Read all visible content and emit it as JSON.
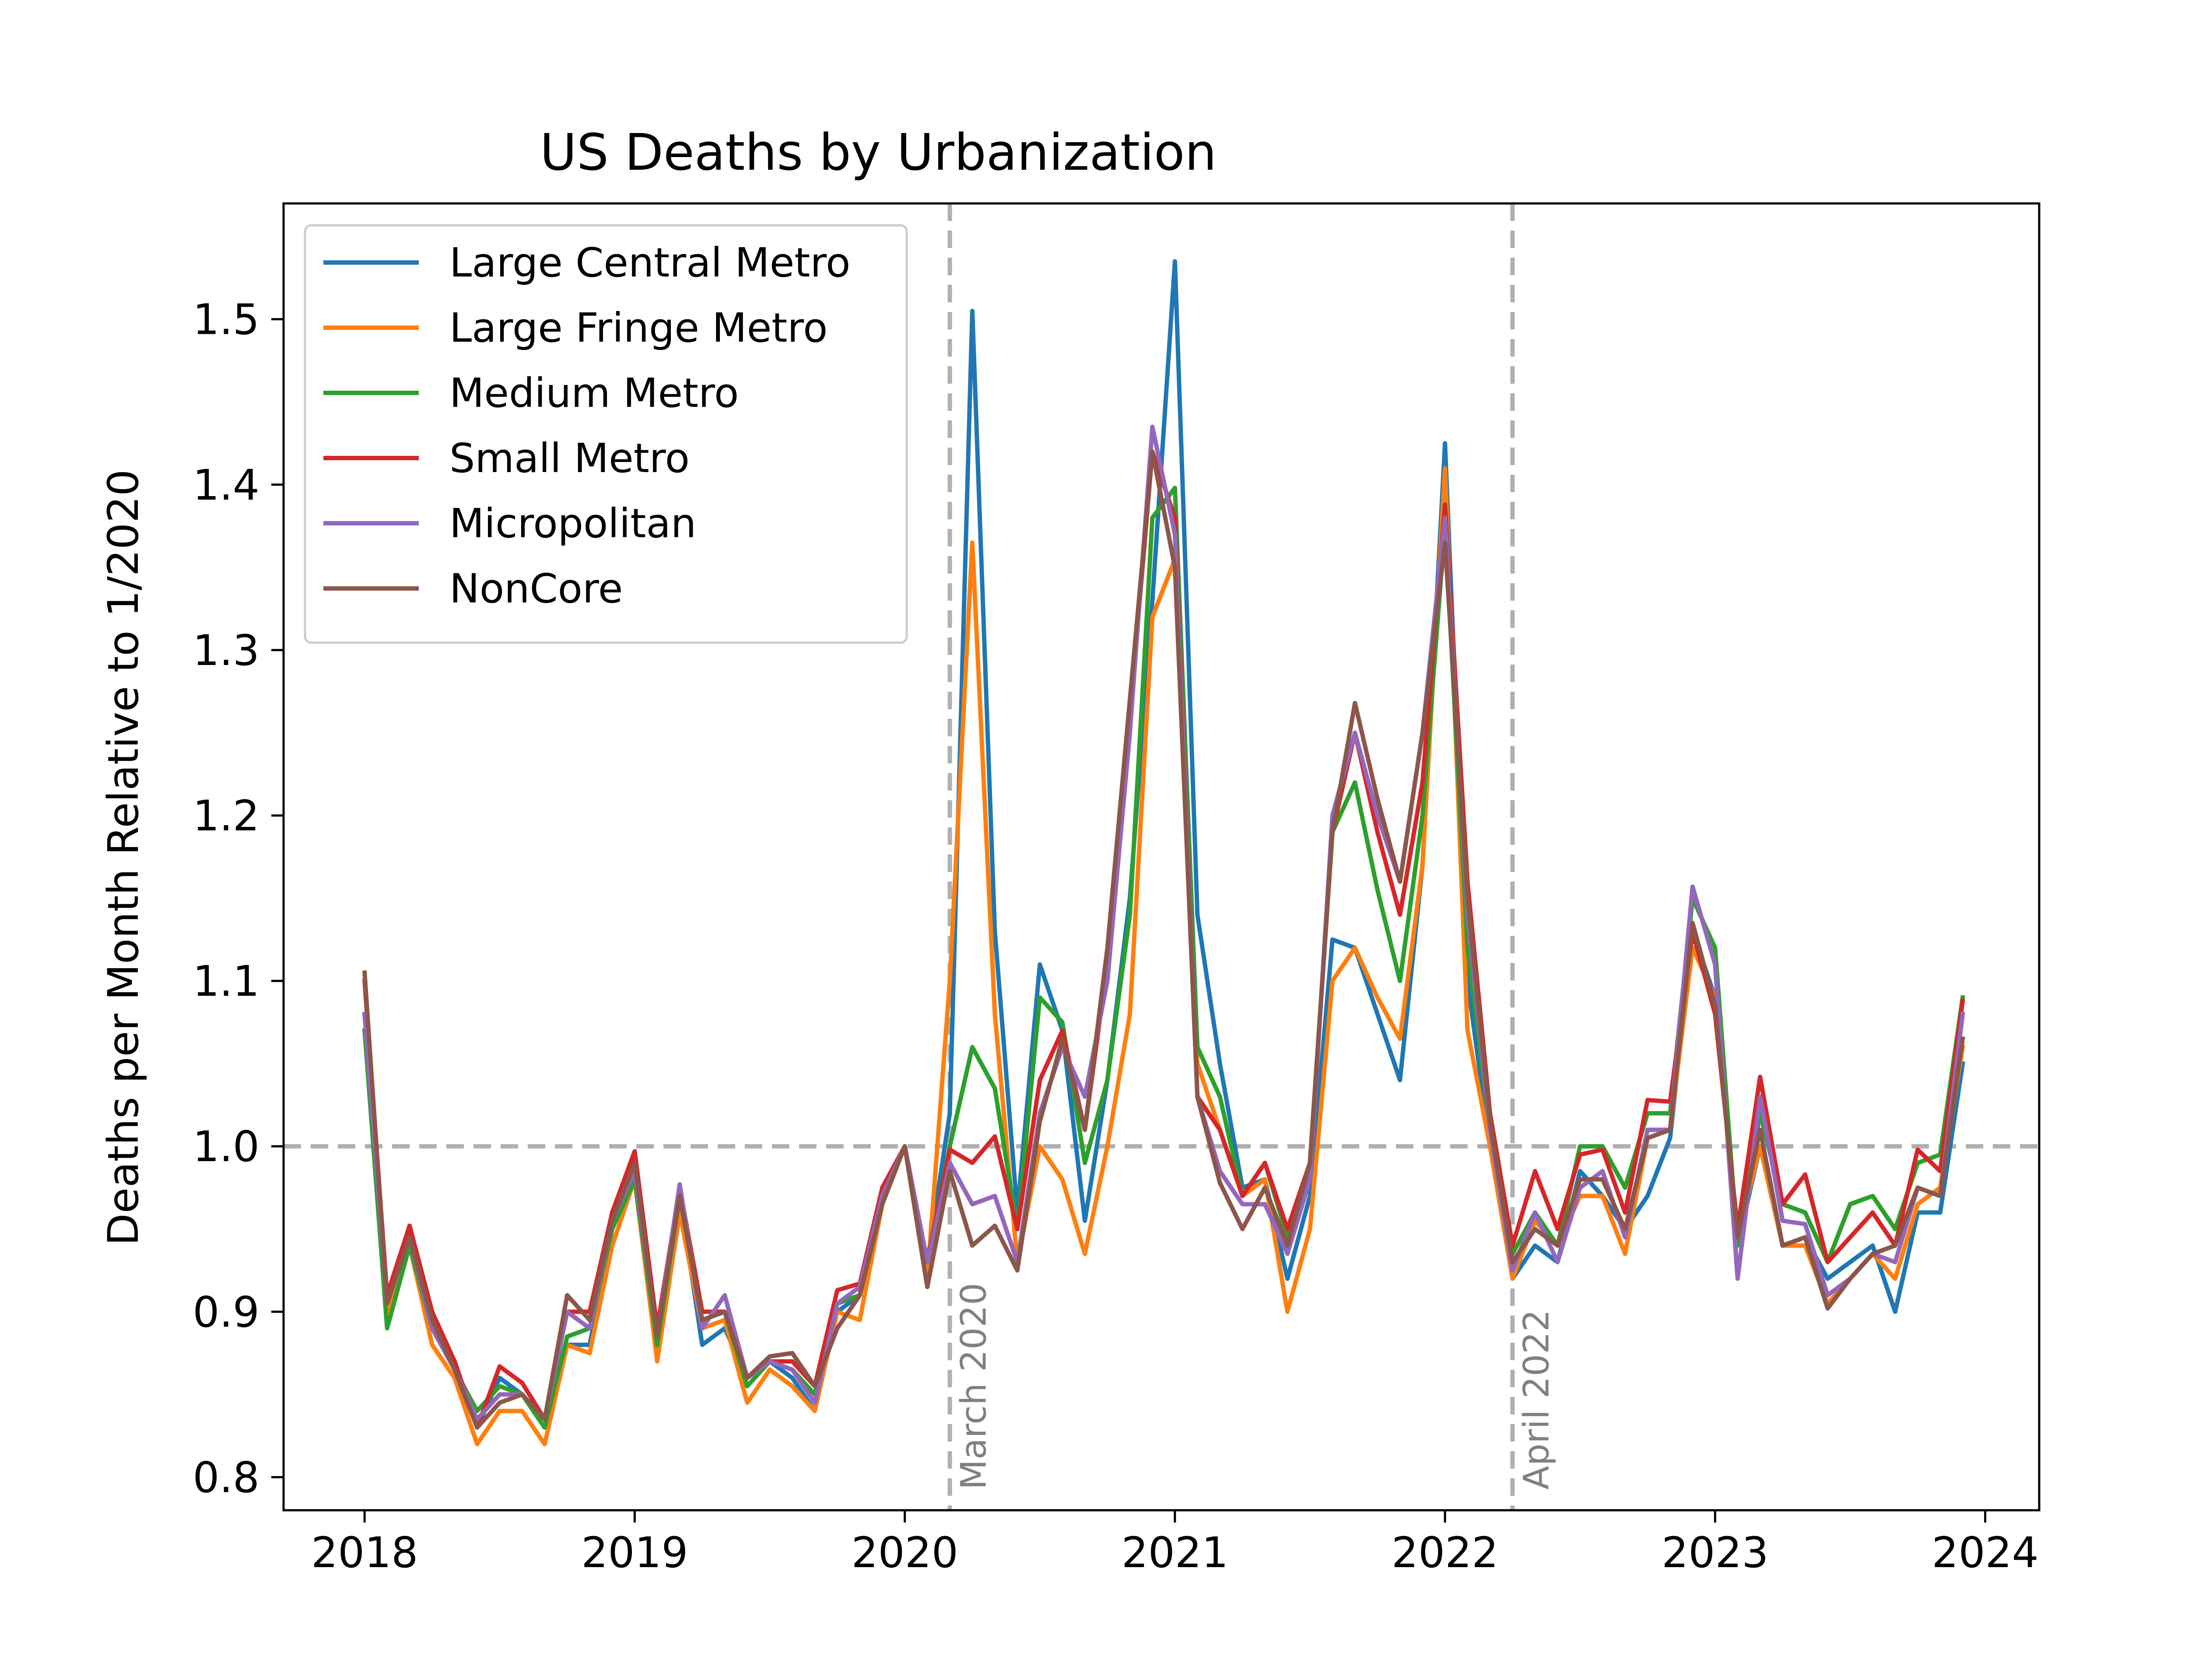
{
  "chart_data": {
    "type": "line",
    "title": "US Deaths by Urbanization",
    "xlabel": "",
    "ylabel": "Deaths per Month Relative to 1/2020",
    "xlim": [
      2017.7,
      2024.2
    ],
    "ylim": [
      0.78,
      1.57
    ],
    "x_ticks": [
      2018,
      2019,
      2020,
      2021,
      2022,
      2023,
      2024
    ],
    "x_tick_labels": [
      "2018",
      "2019",
      "2020",
      "2021",
      "2022",
      "2023",
      "2024"
    ],
    "y_ticks": [
      0.8,
      0.9,
      1.0,
      1.1,
      1.2,
      1.3,
      1.4,
      1.5
    ],
    "y_tick_labels": [
      "0.8",
      "0.9",
      "1.0",
      "1.1",
      "1.2",
      "1.3",
      "1.4",
      "1.5"
    ],
    "x_start": 2018.0,
    "x_step_months": 1,
    "reference_line": {
      "y": 1.0,
      "color": "#b0b0b0"
    },
    "vlines": [
      {
        "x": 2020.1667,
        "label": "March 2020",
        "color": "#b0b0b0"
      },
      {
        "x": 2022.25,
        "label": "April 2022",
        "color": "#b0b0b0"
      }
    ],
    "legend_position": "upper left",
    "series": [
      {
        "name": "Large Central Metro",
        "color": "#1f77b4",
        "values": [
          1.08,
          0.9,
          0.95,
          0.89,
          0.87,
          0.83,
          0.86,
          0.85,
          0.83,
          0.88,
          0.88,
          0.95,
          0.99,
          0.88,
          0.97,
          0.88,
          0.89,
          0.86,
          0.87,
          0.86,
          0.84,
          0.9,
          0.91,
          0.97,
          1.0,
          0.93,
          1.02,
          1.505,
          1.13,
          0.96,
          1.11,
          1.07,
          0.955,
          1.04,
          1.15,
          1.33,
          1.535,
          1.14,
          1.05,
          0.975,
          0.98,
          0.92,
          0.97,
          1.125,
          1.12,
          1.08,
          1.04,
          1.17,
          1.425,
          1.1,
          1.0,
          0.92,
          0.94,
          0.93,
          0.985,
          0.97,
          0.95,
          0.97,
          1.005,
          1.13,
          1.09,
          0.94,
          1.0,
          0.94,
          0.945,
          0.92,
          0.93,
          0.94,
          0.9,
          0.96,
          0.96,
          1.05
        ]
      },
      {
        "name": "Large Fringe Metro",
        "color": "#ff7f0e",
        "values": [
          1.07,
          0.9,
          0.94,
          0.88,
          0.86,
          0.82,
          0.84,
          0.84,
          0.82,
          0.88,
          0.875,
          0.94,
          0.98,
          0.87,
          0.96,
          0.89,
          0.895,
          0.845,
          0.865,
          0.855,
          0.84,
          0.9,
          0.895,
          0.965,
          1.0,
          0.92,
          1.1,
          1.365,
          1.08,
          0.93,
          1.0,
          0.98,
          0.935,
          1.0,
          1.08,
          1.32,
          1.355,
          1.05,
          1.01,
          0.97,
          0.98,
          0.9,
          0.95,
          1.1,
          1.12,
          1.09,
          1.065,
          1.17,
          1.41,
          1.07,
          1.0,
          0.92,
          0.955,
          0.94,
          0.97,
          0.97,
          0.935,
          1.005,
          1.01,
          1.12,
          1.09,
          0.945,
          1.0,
          0.94,
          0.94,
          0.905,
          0.92,
          0.935,
          0.92,
          0.965,
          0.975,
          1.06
        ]
      },
      {
        "name": "Medium Metro",
        "color": "#2ca02c",
        "values": [
          1.07,
          0.89,
          0.94,
          0.89,
          0.865,
          0.84,
          0.855,
          0.85,
          0.83,
          0.885,
          0.89,
          0.95,
          0.98,
          0.88,
          0.97,
          0.895,
          0.9,
          0.855,
          0.87,
          0.865,
          0.85,
          0.905,
          0.91,
          0.975,
          1.0,
          0.93,
          1.0,
          1.06,
          1.035,
          0.95,
          1.09,
          1.075,
          0.99,
          1.04,
          1.14,
          1.38,
          1.398,
          1.06,
          1.03,
          0.97,
          0.99,
          0.945,
          0.99,
          1.19,
          1.22,
          1.155,
          1.1,
          1.2,
          1.375,
          1.12,
          1.01,
          0.935,
          0.96,
          0.94,
          1.0,
          1.0,
          0.975,
          1.02,
          1.02,
          1.15,
          1.12,
          0.94,
          1.02,
          0.965,
          0.96,
          0.93,
          0.965,
          0.97,
          0.95,
          0.99,
          0.995,
          1.09
        ]
      },
      {
        "name": "Small Metro",
        "color": "#d62728",
        "values": [
          1.1,
          0.91,
          0.952,
          0.9,
          0.87,
          0.83,
          0.867,
          0.857,
          0.835,
          0.9,
          0.9,
          0.96,
          0.997,
          0.89,
          0.975,
          0.9,
          0.9,
          0.86,
          0.87,
          0.87,
          0.855,
          0.913,
          0.917,
          0.975,
          1.0,
          0.93,
          0.998,
          0.99,
          1.006,
          0.95,
          1.04,
          1.07,
          1.01,
          1.11,
          1.26,
          1.42,
          1.38,
          1.03,
          1.01,
          0.97,
          0.99,
          0.95,
          0.99,
          1.19,
          1.25,
          1.19,
          1.14,
          1.22,
          1.388,
          1.16,
          1.02,
          0.94,
          0.985,
          0.95,
          0.995,
          0.998,
          0.96,
          1.028,
          1.027,
          1.13,
          1.08,
          0.95,
          1.042,
          0.965,
          0.983,
          0.93,
          0.945,
          0.96,
          0.94,
          0.998,
          0.985,
          1.088
        ]
      },
      {
        "name": "Micropolitan",
        "color": "#9467bd",
        "values": [
          1.08,
          0.905,
          0.945,
          0.89,
          0.865,
          0.835,
          0.85,
          0.85,
          0.835,
          0.9,
          0.89,
          0.955,
          0.985,
          0.885,
          0.977,
          0.89,
          0.91,
          0.86,
          0.87,
          0.865,
          0.845,
          0.905,
          0.915,
          0.97,
          1.0,
          0.93,
          0.99,
          0.965,
          0.97,
          0.93,
          1.02,
          1.06,
          1.03,
          1.1,
          1.25,
          1.435,
          1.37,
          1.03,
          0.985,
          0.965,
          0.965,
          0.935,
          0.98,
          1.2,
          1.25,
          1.2,
          1.16,
          1.25,
          1.38,
          1.14,
          1.01,
          0.925,
          0.96,
          0.93,
          0.975,
          0.985,
          0.945,
          1.01,
          1.01,
          1.157,
          1.11,
          0.92,
          1.03,
          0.955,
          0.953,
          0.91,
          0.92,
          0.935,
          0.93,
          0.975,
          0.97,
          1.08
        ]
      },
      {
        "name": "NonCore",
        "color": "#8c564b",
        "values": [
          1.105,
          0.905,
          0.945,
          0.895,
          0.865,
          0.83,
          0.845,
          0.85,
          0.835,
          0.91,
          0.895,
          0.955,
          0.99,
          0.885,
          0.97,
          0.895,
          0.9,
          0.86,
          0.873,
          0.875,
          0.855,
          0.89,
          0.91,
          0.965,
          1.0,
          0.915,
          0.985,
          0.94,
          0.952,
          0.925,
          1.015,
          1.065,
          1.01,
          1.12,
          1.27,
          1.42,
          1.35,
          1.03,
          0.978,
          0.95,
          0.975,
          0.94,
          0.99,
          1.19,
          1.268,
          1.21,
          1.16,
          1.25,
          1.365,
          1.15,
          1.015,
          0.93,
          0.95,
          0.94,
          0.98,
          0.98,
          0.95,
          1.005,
          1.01,
          1.135,
          1.085,
          0.945,
          1.01,
          0.94,
          0.945,
          0.902,
          0.92,
          0.935,
          0.94,
          0.975,
          0.97,
          1.065
        ]
      }
    ]
  }
}
